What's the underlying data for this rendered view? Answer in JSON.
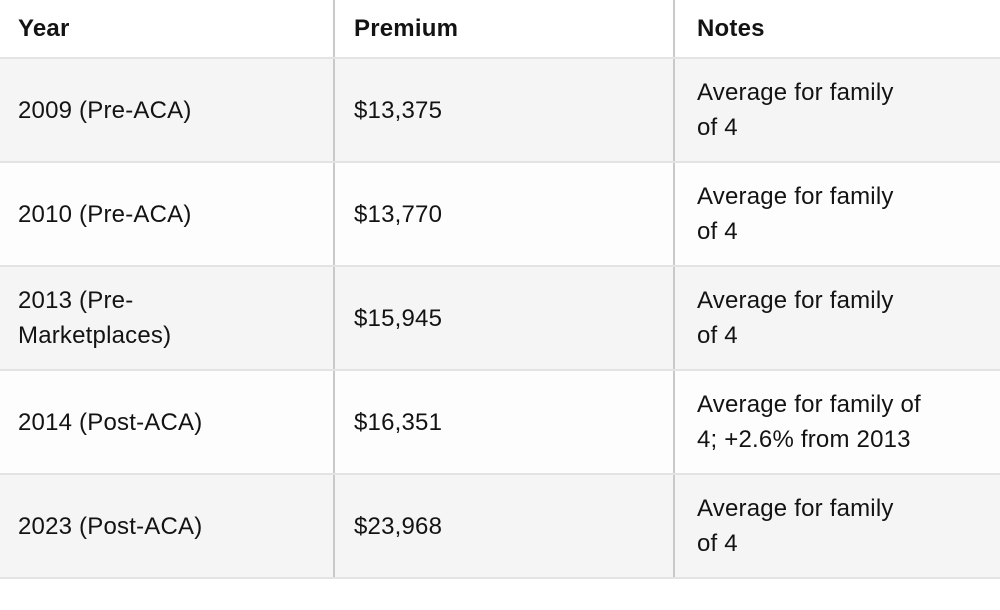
{
  "colors": {
    "stripe_row_bg": "#f5f5f6",
    "plain_row_bg": "#fdfdfd",
    "header_bg": "#ffffff",
    "horizontal_border": "#e3e3e4",
    "vertical_border": "#c9c9cc",
    "text": "#131313"
  },
  "table": {
    "headers": [
      "Year",
      "Premium",
      "Notes"
    ],
    "rows": [
      {
        "year": "2009 (Pre-ACA)",
        "premium": "$13,375",
        "notes": "Average for family\nof 4"
      },
      {
        "year": "2010 (Pre-ACA)",
        "premium": "$13,770",
        "notes": "Average for family\nof 4"
      },
      {
        "year": "2013 (Pre-\nMarketplaces)",
        "premium": "$15,945",
        "notes": "Average for family\nof 4"
      },
      {
        "year": "2014 (Post-ACA)",
        "premium": "$16,351",
        "notes": "Average for family of\n4; +2.6% from 2013"
      },
      {
        "year": "2023 (Post-ACA)",
        "premium": "$23,968",
        "notes": "Average for family\nof 4"
      }
    ]
  },
  "chart_data": {
    "type": "table",
    "title": "",
    "columns": [
      "Year",
      "Premium",
      "Notes"
    ],
    "rows": [
      [
        "2009 (Pre-ACA)",
        "$13,375",
        "Average for family of 4"
      ],
      [
        "2010 (Pre-ACA)",
        "$13,770",
        "Average for family of 4"
      ],
      [
        "2013 (Pre-Marketplaces)",
        "$15,945",
        "Average for family of 4"
      ],
      [
        "2014 (Post-ACA)",
        "$16,351",
        "Average for family of 4; +2.6% from 2013"
      ],
      [
        "2023 (Post-ACA)",
        "$23,968",
        "Average for family of 4"
      ]
    ],
    "premium_values_usd": [
      13375,
      13770,
      15945,
      16351,
      23968
    ]
  }
}
